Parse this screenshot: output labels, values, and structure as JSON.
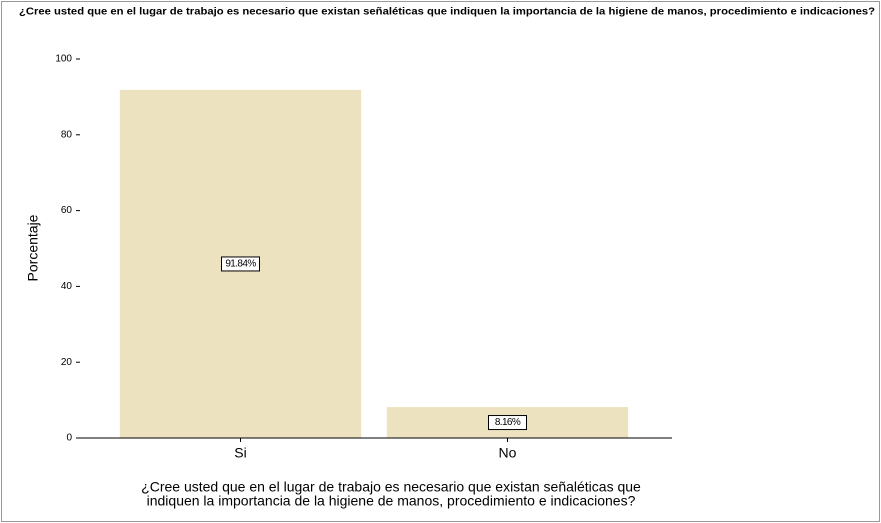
{
  "chart_data": {
    "type": "bar",
    "title": "¿Cree usted que en el lugar  de trabajo es necesario que existan  señaléticas que indiquen la importancia  de la higiene de manos, procedimiento e indicaciones?",
    "y_label": "Porcentaje",
    "x_label": [
      "¿Cree usted que en el lugar  de trabajo es necesario que existan  señaléticas que",
      "indiquen la importancia  de la higiene de manos, procedimiento e indicaciones?"
    ],
    "categories": [
      "Si",
      "No"
    ],
    "values": [
      91.84,
      8.16
    ],
    "value_labels": [
      "91.84%",
      "8.16%"
    ],
    "color": "#ede2bf",
    "ylim": [
      0,
      100
    ],
    "yticks": [
      0,
      20,
      40,
      60,
      80,
      100
    ]
  }
}
